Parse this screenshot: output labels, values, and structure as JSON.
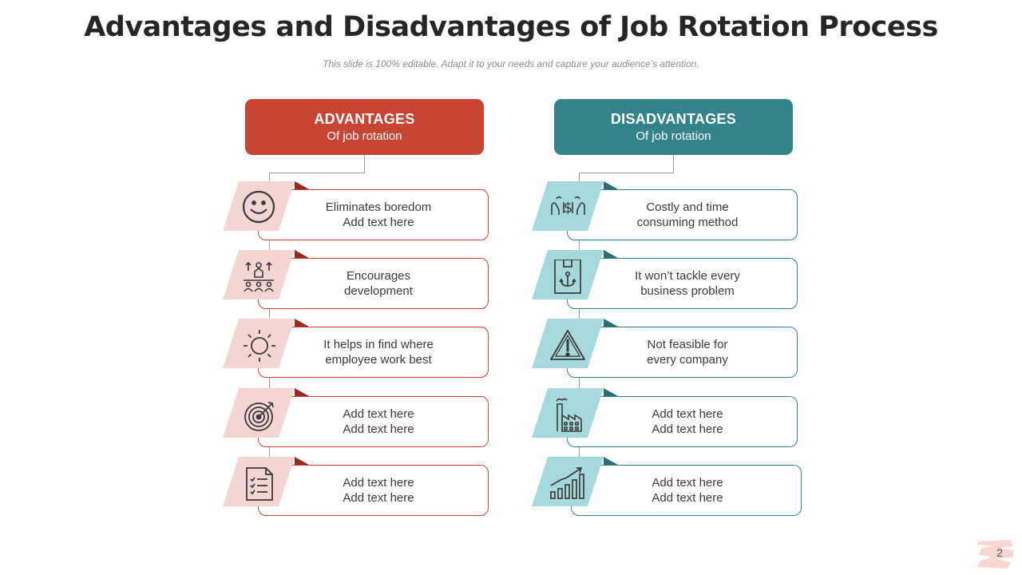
{
  "title": "Advantages and Disadvantages of Job Rotation Process",
  "subtitle": "This slide is 100% editable. Adapt it to your needs and capture your audience’s attention.",
  "colors": {
    "advantage": "#c84534",
    "advantage_light": "#f3d6d1",
    "disadvantage": "#33838a",
    "disadvantage_light": "#a6d9de"
  },
  "advantages": {
    "title": "ADVANTAGES",
    "subtitle": "Of job rotation",
    "items": [
      {
        "icon": "smiley-icon",
        "line1": "Eliminates boredom",
        "line2": "Add text here"
      },
      {
        "icon": "team-growth-icon",
        "line1": "Encourages",
        "line2": "development"
      },
      {
        "icon": "sun-icon",
        "line1": "It helps in find where",
        "line2": "employee work best"
      },
      {
        "icon": "target-icon",
        "line1": "Add text here",
        "line2": "Add text here"
      },
      {
        "icon": "checklist-document-icon",
        "line1": "Add text here",
        "line2": "Add text here"
      }
    ]
  },
  "disadvantages": {
    "title": "DISADVANTAGES",
    "subtitle": "Of job rotation",
    "items": [
      {
        "icon": "money-hands-icon",
        "line1": "Costly and time",
        "line2": "consuming method"
      },
      {
        "icon": "box-anchor-icon",
        "line1": "It won’t tackle every",
        "line2": "business problem"
      },
      {
        "icon": "warning-icon",
        "line1": "Not feasible for",
        "line2": "every company"
      },
      {
        "icon": "factory-icon",
        "line1": "Add text here",
        "line2": "Add text here"
      },
      {
        "icon": "growth-chart-icon",
        "line1": "Add text here",
        "line2": "Add text here"
      }
    ]
  },
  "page_number": "2"
}
